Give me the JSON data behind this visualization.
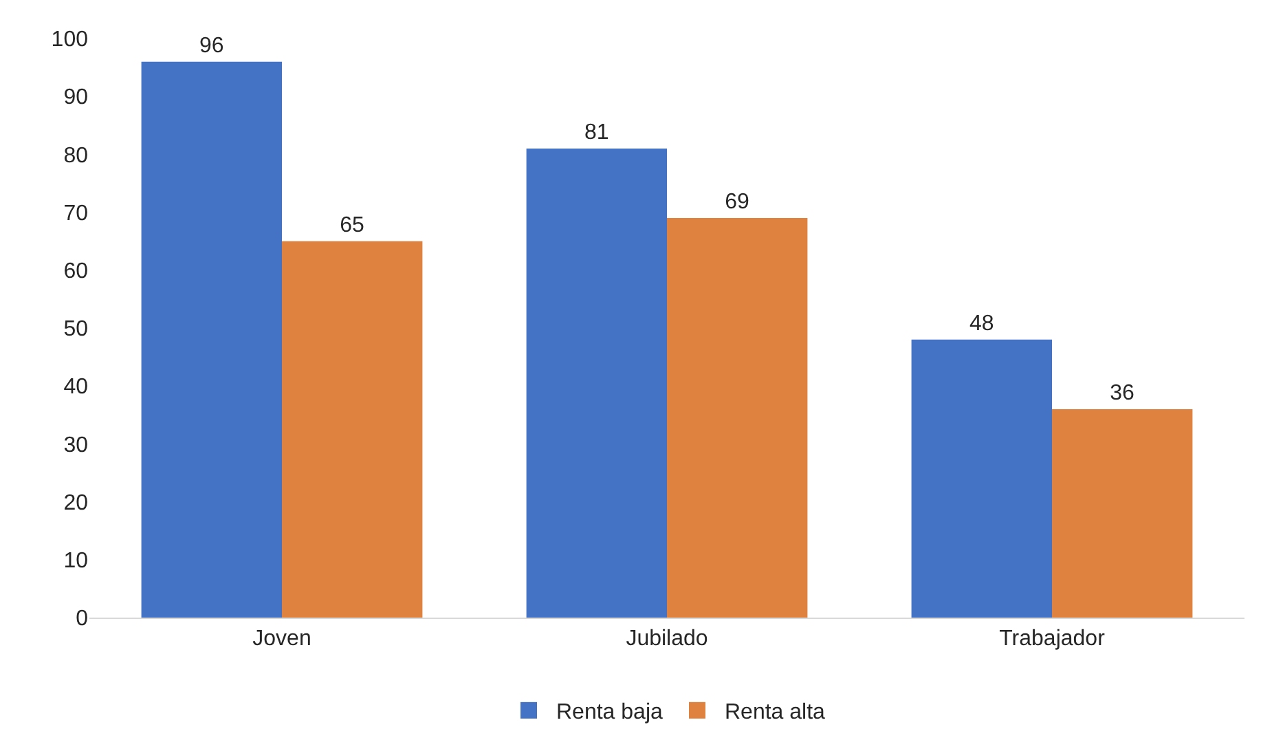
{
  "chart_data": {
    "type": "bar",
    "categories": [
      "Joven",
      "Jubilado",
      "Trabajador"
    ],
    "series": [
      {
        "name": "Renta baja",
        "color": "#4472c4",
        "values": [
          96,
          81,
          48
        ]
      },
      {
        "name": "Renta alta",
        "color": "#e0823f",
        "values": [
          65,
          69,
          36
        ]
      }
    ],
    "ylim": [
      0,
      100
    ],
    "yticks": [
      0,
      10,
      20,
      30,
      40,
      50,
      60,
      70,
      80,
      90,
      100
    ],
    "grid": false,
    "legend": "bottom",
    "data_labels": true
  }
}
